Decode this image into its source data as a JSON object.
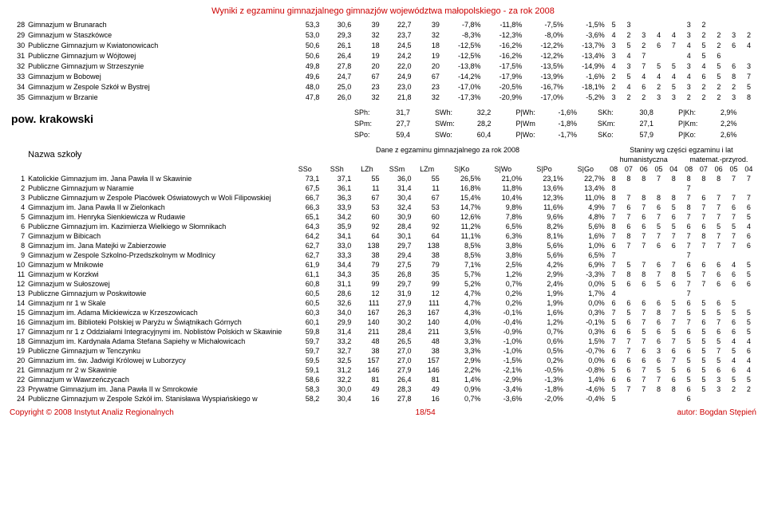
{
  "title": "Wyniki z egzaminu gimnazjalnego gimnazjów województwa małopolskiego - za rok 2008",
  "region": "pow. krakowski",
  "stats": {
    "r1": [
      "SPh:",
      "31,7",
      "SWh:",
      "32,2",
      "P|Wh:",
      "-1,6%",
      "SKh:",
      "30,8",
      "P|Kh:",
      "2,9%"
    ],
    "r2": [
      "SPm:",
      "27,7",
      "SWm:",
      "28,2",
      "P|Wm",
      "-1,8%",
      "SKm:",
      "27,1",
      "P|Km:",
      "2,2%"
    ],
    "r3": [
      "SPo:",
      "59,4",
      "SWo:",
      "60,4",
      "P|Wo:",
      "-1,7%",
      "SKo:",
      "57,9",
      "P|Ko:",
      "2,6%"
    ]
  },
  "header2": {
    "nazwa": "Nazwa szkoły",
    "dane": "Dane z egzaminu gimnazjalnego za rok 2008",
    "staniny": "Staniny wg części egzaminu i lat",
    "hum": "humanistyczna",
    "mat": "matemat.-przyrod.",
    "cols": [
      "SSo",
      "SSh",
      "LZh",
      "SSm",
      "LZm",
      "S|Ko",
      "S|Wo",
      "S|Po",
      "S|Go"
    ],
    "years": [
      "08",
      "07",
      "06",
      "05",
      "04",
      "08",
      "07",
      "06",
      "05",
      "04"
    ]
  },
  "topRows": [
    {
      "n": "28",
      "name": "Gimnazjum w Brunarach",
      "v": [
        "53,3",
        "30,6",
        "39",
        "22,7",
        "39",
        "-7,8%",
        "-11,8%",
        "-7,5%",
        "-1,5%"
      ],
      "s": [
        "5",
        "3",
        "",
        "",
        "",
        "3",
        "2",
        "",
        "",
        ""
      ]
    },
    {
      "n": "29",
      "name": "Gimnazjum w Staszkówce",
      "v": [
        "53,0",
        "29,3",
        "32",
        "23,7",
        "32",
        "-8,3%",
        "-12,3%",
        "-8,0%",
        "-3,6%"
      ],
      "s": [
        "4",
        "2",
        "3",
        "4",
        "4",
        "3",
        "2",
        "2",
        "3",
        "2"
      ]
    },
    {
      "n": "30",
      "name": "Publiczne Gimnazjum w Kwiatonowicach",
      "v": [
        "50,6",
        "26,1",
        "18",
        "24,5",
        "18",
        "-12,5%",
        "-16,2%",
        "-12,2%",
        "-13,7%"
      ],
      "s": [
        "3",
        "5",
        "2",
        "6",
        "7",
        "4",
        "5",
        "2",
        "6",
        "4"
      ]
    },
    {
      "n": "31",
      "name": "Publiczne Gimnazjum w Wójtowej",
      "v": [
        "50,6",
        "26,4",
        "19",
        "24,2",
        "19",
        "-12,5%",
        "-16,2%",
        "-12,2%",
        "-13,4%"
      ],
      "s": [
        "3",
        "4",
        "7",
        "",
        "",
        "4",
        "5",
        "6",
        "",
        ""
      ]
    },
    {
      "n": "32",
      "name": "Publiczne Gimnazjum w Strzeszynie",
      "v": [
        "49,8",
        "27,8",
        "20",
        "22,0",
        "20",
        "-13,8%",
        "-17,5%",
        "-13,5%",
        "-14,9%"
      ],
      "s": [
        "4",
        "3",
        "7",
        "5",
        "5",
        "3",
        "4",
        "5",
        "6",
        "3"
      ]
    },
    {
      "n": "33",
      "name": "Gimnazjum w Bobowej",
      "v": [
        "49,6",
        "24,7",
        "67",
        "24,9",
        "67",
        "-14,2%",
        "-17,9%",
        "-13,9%",
        "-1,6%"
      ],
      "s": [
        "2",
        "5",
        "4",
        "4",
        "4",
        "4",
        "6",
        "5",
        "8",
        "7"
      ]
    },
    {
      "n": "34",
      "name": "Gimnazjum w Zespole Szkół w Bystrej",
      "v": [
        "48,0",
        "25,0",
        "23",
        "23,0",
        "23",
        "-17,0%",
        "-20,5%",
        "-16,7%",
        "-18,1%"
      ],
      "s": [
        "2",
        "4",
        "6",
        "2",
        "5",
        "3",
        "2",
        "2",
        "2",
        "5"
      ]
    },
    {
      "n": "35",
      "name": "Gimnazjum w Brzanie",
      "v": [
        "47,8",
        "26,0",
        "32",
        "21,8",
        "32",
        "-17,3%",
        "-20,9%",
        "-17,0%",
        "-5,2%"
      ],
      "s": [
        "3",
        "2",
        "2",
        "3",
        "3",
        "2",
        "2",
        "2",
        "3",
        "8"
      ]
    }
  ],
  "bottomRows": [
    {
      "n": "1",
      "name": "Katolickie Gimnazjum im. Jana Pawła II w Skawinie",
      "v": [
        "73,1",
        "37,1",
        "55",
        "36,0",
        "55",
        "26,5%",
        "21,0%",
        "23,1%",
        "22,7%"
      ],
      "s": [
        "8",
        "8",
        "8",
        "7",
        "8",
        "8",
        "8",
        "8",
        "7",
        "7"
      ]
    },
    {
      "n": "2",
      "name": "Publiczne Gimnazjum w Naramie",
      "v": [
        "67,5",
        "36,1",
        "11",
        "31,4",
        "11",
        "16,8%",
        "11,8%",
        "13,6%",
        "13,4%"
      ],
      "s": [
        "8",
        "",
        "",
        "",
        "",
        "7",
        "",
        "",
        "",
        ""
      ]
    },
    {
      "n": "3",
      "name": "Publiczne Gimnazjum w Zespole Placówek Oświatowych w Woli Filipowskiej",
      "v": [
        "66,7",
        "36,3",
        "67",
        "30,4",
        "67",
        "15,4%",
        "10,4%",
        "12,3%",
        "11,0%"
      ],
      "s": [
        "8",
        "7",
        "8",
        "8",
        "8",
        "7",
        "6",
        "7",
        "7",
        "7"
      ]
    },
    {
      "n": "4",
      "name": "Gimnazjum im. Jana Pawła II w Zielonkach",
      "v": [
        "66,3",
        "33,9",
        "53",
        "32,4",
        "53",
        "14,7%",
        "9,8%",
        "11,6%",
        "4,9%"
      ],
      "s": [
        "7",
        "6",
        "7",
        "6",
        "5",
        "8",
        "7",
        "7",
        "6",
        "6"
      ]
    },
    {
      "n": "5",
      "name": "Gimnazjum im. Henryka Sienkiewicza w Rudawie",
      "v": [
        "65,1",
        "34,2",
        "60",
        "30,9",
        "60",
        "12,6%",
        "7,8%",
        "9,6%",
        "4,8%"
      ],
      "s": [
        "7",
        "7",
        "6",
        "7",
        "6",
        "7",
        "7",
        "7",
        "7",
        "5"
      ]
    },
    {
      "n": "6",
      "name": "Publiczne Gimnazjum im. Kazimierza Wielkiego w Słomnikach",
      "v": [
        "64,3",
        "35,9",
        "92",
        "28,4",
        "92",
        "11,2%",
        "6,5%",
        "8,2%",
        "5,6%"
      ],
      "s": [
        "8",
        "6",
        "6",
        "5",
        "5",
        "6",
        "6",
        "5",
        "5",
        "4"
      ]
    },
    {
      "n": "7",
      "name": "Gimnazjum w Bibicach",
      "v": [
        "64,2",
        "34,1",
        "64",
        "30,1",
        "64",
        "11,1%",
        "6,3%",
        "8,1%",
        "1,6%"
      ],
      "s": [
        "7",
        "8",
        "7",
        "7",
        "7",
        "7",
        "8",
        "7",
        "7",
        "6"
      ]
    },
    {
      "n": "8",
      "name": "Gimnazjum im. Jana Matejki w Zabierzowie",
      "v": [
        "62,7",
        "33,0",
        "138",
        "29,7",
        "138",
        "8,5%",
        "3,8%",
        "5,6%",
        "1,0%"
      ],
      "s": [
        "6",
        "7",
        "7",
        "6",
        "6",
        "7",
        "7",
        "7",
        "7",
        "6"
      ]
    },
    {
      "n": "9",
      "name": "Gimnazjum w Zespole Szkolno-Przedszkolnym w Modlnicy",
      "v": [
        "62,7",
        "33,3",
        "38",
        "29,4",
        "38",
        "8,5%",
        "3,8%",
        "5,6%",
        "6,5%"
      ],
      "s": [
        "7",
        "",
        "",
        "",
        "",
        "7",
        "",
        "",
        "",
        ""
      ]
    },
    {
      "n": "10",
      "name": "Gimnazjum w Mnikowie",
      "v": [
        "61,9",
        "34,4",
        "79",
        "27,5",
        "79",
        "7,1%",
        "2,5%",
        "4,2%",
        "6,9%"
      ],
      "s": [
        "7",
        "5",
        "7",
        "6",
        "7",
        "6",
        "6",
        "6",
        "4",
        "5"
      ]
    },
    {
      "n": "11",
      "name": "Gimnazjum w Korzkwi",
      "v": [
        "61,1",
        "34,3",
        "35",
        "26,8",
        "35",
        "5,7%",
        "1,2%",
        "2,9%",
        "-3,3%"
      ],
      "s": [
        "7",
        "8",
        "8",
        "7",
        "8",
        "5",
        "7",
        "6",
        "6",
        "5"
      ]
    },
    {
      "n": "12",
      "name": "Gimnazjum w Sułoszowej",
      "v": [
        "60,8",
        "31,1",
        "99",
        "29,7",
        "99",
        "5,2%",
        "0,7%",
        "2,4%",
        "0,0%"
      ],
      "s": [
        "5",
        "6",
        "6",
        "5",
        "6",
        "7",
        "7",
        "6",
        "6",
        "6"
      ]
    },
    {
      "n": "13",
      "name": "Publiczne Gimnazjum w Poskwitowie",
      "v": [
        "60,5",
        "28,6",
        "12",
        "31,9",
        "12",
        "4,7%",
        "0,2%",
        "1,9%",
        "1,7%"
      ],
      "s": [
        "4",
        "",
        "",
        "",
        "",
        "7",
        "",
        "",
        "",
        ""
      ]
    },
    {
      "n": "14",
      "name": "Gimnazjum nr 1 w Skale",
      "v": [
        "60,5",
        "32,6",
        "111",
        "27,9",
        "111",
        "4,7%",
        "0,2%",
        "1,9%",
        "0,0%"
      ],
      "s": [
        "6",
        "6",
        "6",
        "6",
        "5",
        "6",
        "5",
        "6",
        "5",
        ""
      ]
    },
    {
      "n": "15",
      "name": "Gimnazjum im. Adama Mickiewicza w Krzeszowicach",
      "v": [
        "60,3",
        "34,0",
        "167",
        "26,3",
        "167",
        "4,3%",
        "-0,1%",
        "1,6%",
        "0,3%"
      ],
      "s": [
        "7",
        "5",
        "7",
        "8",
        "7",
        "5",
        "5",
        "5",
        "5",
        "5"
      ]
    },
    {
      "n": "16",
      "name": "Gimnazjum im. Biblioteki Polskiej w Paryżu w Świątnikach Górnych",
      "v": [
        "60,1",
        "29,9",
        "140",
        "30,2",
        "140",
        "4,0%",
        "-0,4%",
        "1,2%",
        "-0,1%"
      ],
      "s": [
        "5",
        "6",
        "7",
        "6",
        "7",
        "7",
        "6",
        "7",
        "6",
        "5"
      ]
    },
    {
      "n": "17",
      "name": "Gimnazjum nr 1 z Oddziałami Integracyjnymi im. Noblistów Polskich w Skawinie",
      "v": [
        "59,8",
        "31,4",
        "211",
        "28,4",
        "211",
        "3,5%",
        "-0,9%",
        "0,7%",
        "0,3%"
      ],
      "s": [
        "6",
        "6",
        "5",
        "6",
        "5",
        "6",
        "5",
        "6",
        "6",
        "5"
      ]
    },
    {
      "n": "18",
      "name": "Gimnazjum im. Kardynała Adama Stefana Sapiehy w Michałowicach",
      "v": [
        "59,7",
        "33,2",
        "48",
        "26,5",
        "48",
        "3,3%",
        "-1,0%",
        "0,6%",
        "1,5%"
      ],
      "s": [
        "7",
        "7",
        "7",
        "6",
        "7",
        "5",
        "5",
        "5",
        "4",
        "4"
      ]
    },
    {
      "n": "19",
      "name": "Publiczne Gimnazjum w Tenczynku",
      "v": [
        "59,7",
        "32,7",
        "38",
        "27,0",
        "38",
        "3,3%",
        "-1,0%",
        "0,5%",
        "-0,7%"
      ],
      "s": [
        "6",
        "7",
        "6",
        "3",
        "6",
        "6",
        "5",
        "7",
        "5",
        "6"
      ]
    },
    {
      "n": "20",
      "name": "Gimnazium im. św. Jadwigi Królowej w Luborzycy",
      "v": [
        "59,5",
        "32,5",
        "157",
        "27,0",
        "157",
        "2,9%",
        "-1,5%",
        "0,2%",
        "0,0%"
      ],
      "s": [
        "6",
        "6",
        "6",
        "6",
        "7",
        "5",
        "5",
        "5",
        "4",
        "4"
      ]
    },
    {
      "n": "21",
      "name": "Gimnazjum nr 2 w Skawinie",
      "v": [
        "59,1",
        "31,2",
        "146",
        "27,9",
        "146",
        "2,2%",
        "-2,1%",
        "-0,5%",
        "-0,8%"
      ],
      "s": [
        "5",
        "6",
        "7",
        "5",
        "5",
        "6",
        "5",
        "6",
        "6",
        "4"
      ]
    },
    {
      "n": "22",
      "name": "Gimnazjum w Wawrzeńczycach",
      "v": [
        "58,6",
        "32,2",
        "81",
        "26,4",
        "81",
        "1,4%",
        "-2,9%",
        "-1,3%",
        "1,4%"
      ],
      "s": [
        "6",
        "6",
        "7",
        "7",
        "6",
        "5",
        "5",
        "3",
        "5",
        "5"
      ]
    },
    {
      "n": "23",
      "name": "Prywatne Gimnazjum im. Jana Pawła II w Smrokowie",
      "v": [
        "58,3",
        "30,0",
        "49",
        "28,3",
        "49",
        "0,9%",
        "-3,4%",
        "-1,8%",
        "-4,6%"
      ],
      "s": [
        "5",
        "7",
        "7",
        "8",
        "8",
        "6",
        "5",
        "3",
        "2",
        "2"
      ]
    },
    {
      "n": "24",
      "name": "Publiczne Gimnazjum w Zespole Szkół im. Stanisława Wyspiańskiego w",
      "v": [
        "58,2",
        "30,4",
        "16",
        "27,8",
        "16",
        "0,7%",
        "-3,6%",
        "-2,0%",
        "-0,4%"
      ],
      "s": [
        "5",
        "",
        "",
        "",
        "",
        "6",
        "",
        "",
        "",
        ""
      ]
    }
  ],
  "footer": {
    "left": "Copyright © 2008 Instytut Analiz Regionalnych",
    "center": "18/54",
    "right": "autor: Bogdan Stępień"
  }
}
